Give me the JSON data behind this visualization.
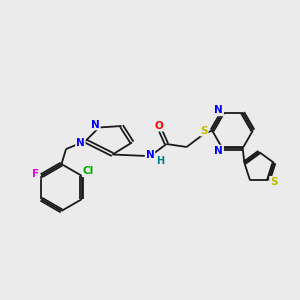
{
  "background_color": "#ebebeb",
  "bond_color": "#1a1a1a",
  "atom_colors": {
    "N": "#0000ff",
    "O": "#ff0000",
    "S": "#bbbb00",
    "F": "#ee00ee",
    "Cl": "#00aa00",
    "H": "#008080",
    "C": "#1a1a1a"
  },
  "figsize": [
    3.0,
    3.0
  ],
  "dpi": 100
}
